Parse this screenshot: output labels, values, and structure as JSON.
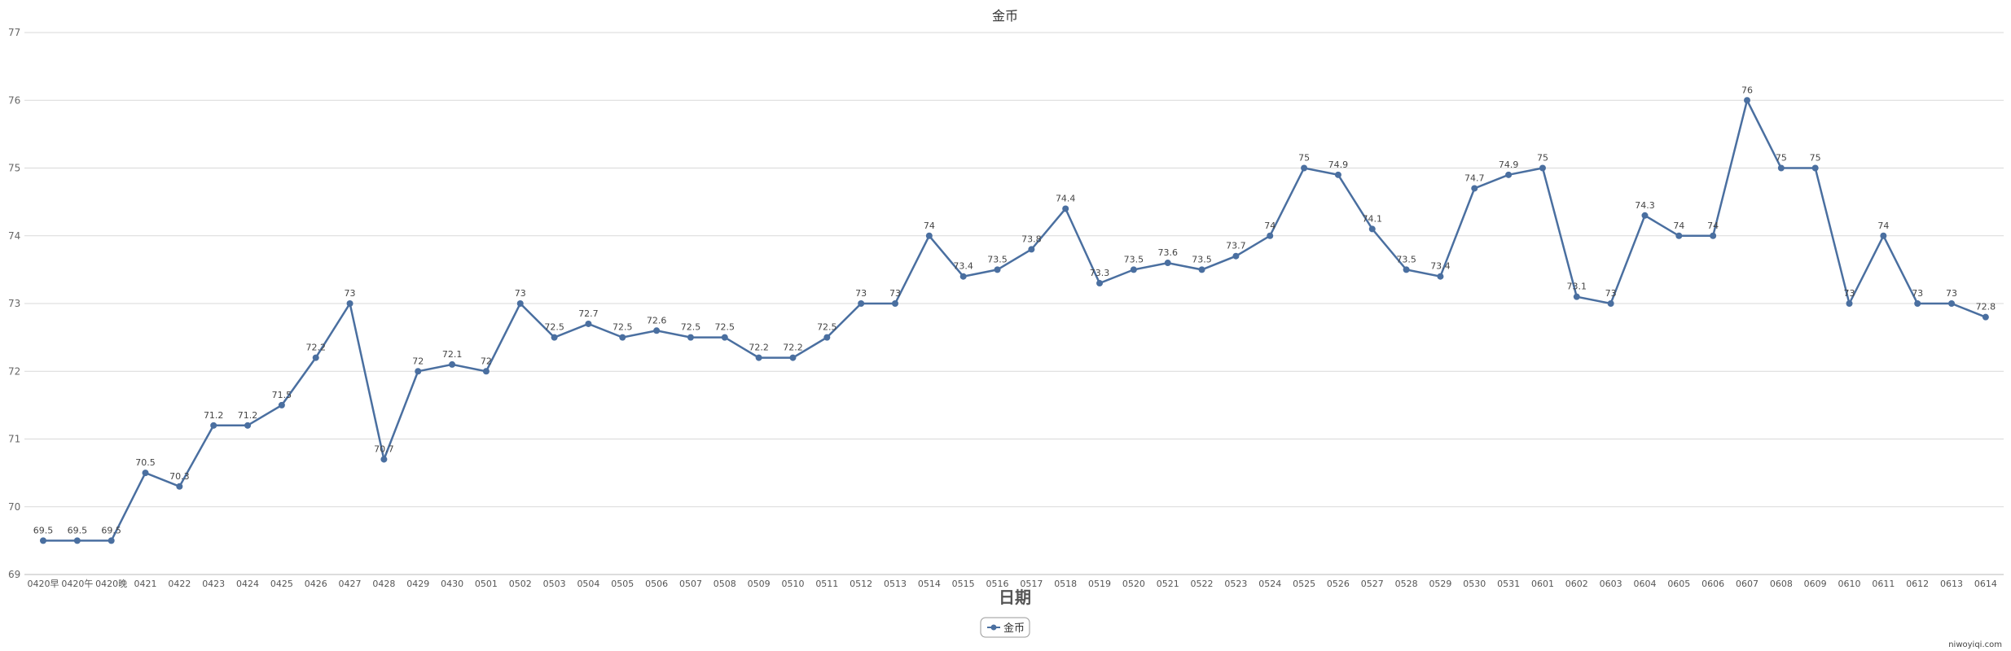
{
  "chart_data": {
    "type": "line",
    "title": "金币",
    "xlabel": "日期",
    "ylabel": "",
    "ylim": [
      69,
      77
    ],
    "yticks": [
      69,
      70,
      71,
      72,
      73,
      74,
      75,
      76,
      77
    ],
    "grid": true,
    "legend_position": "bottom-center",
    "categories": [
      "0420早",
      "0420午",
      "0420晚",
      "0421",
      "0422",
      "0423",
      "0424",
      "0425",
      "0426",
      "0427",
      "0428",
      "0429",
      "0430",
      "0501",
      "0502",
      "0503",
      "0504",
      "0505",
      "0506",
      "0507",
      "0508",
      "0509",
      "0510",
      "0511",
      "0512",
      "0513",
      "0514",
      "0515",
      "0516",
      "0517",
      "0518",
      "0519",
      "0520",
      "0521",
      "0522",
      "0523",
      "0524",
      "0525",
      "0526",
      "0527",
      "0528",
      "0529",
      "0530",
      "0531",
      "0601",
      "0602",
      "0603",
      "0604",
      "0605",
      "0606",
      "0607",
      "0608",
      "0609",
      "0610",
      "0611",
      "0612",
      "0613",
      "0614"
    ],
    "series": [
      {
        "name": "金币",
        "color": "#4a6fa0",
        "values": [
          69.5,
          69.5,
          69.5,
          70.5,
          70.3,
          71.2,
          71.2,
          71.5,
          72.2,
          73,
          70.7,
          72,
          72.1,
          72,
          73,
          72.5,
          72.7,
          72.5,
          72.6,
          72.5,
          72.5,
          72.2,
          72.2,
          72.5,
          73,
          73,
          74,
          73.4,
          73.5,
          73.8,
          74.4,
          73.3,
          73.5,
          73.6,
          73.5,
          73.7,
          74,
          75,
          74.9,
          74.1,
          73.5,
          73.4,
          74.7,
          74.9,
          75,
          73.1,
          73,
          74.3,
          74,
          74,
          76,
          75,
          75,
          73,
          74,
          73,
          73,
          72.8
        ]
      }
    ]
  },
  "watermark": "niwoyiqi.com"
}
